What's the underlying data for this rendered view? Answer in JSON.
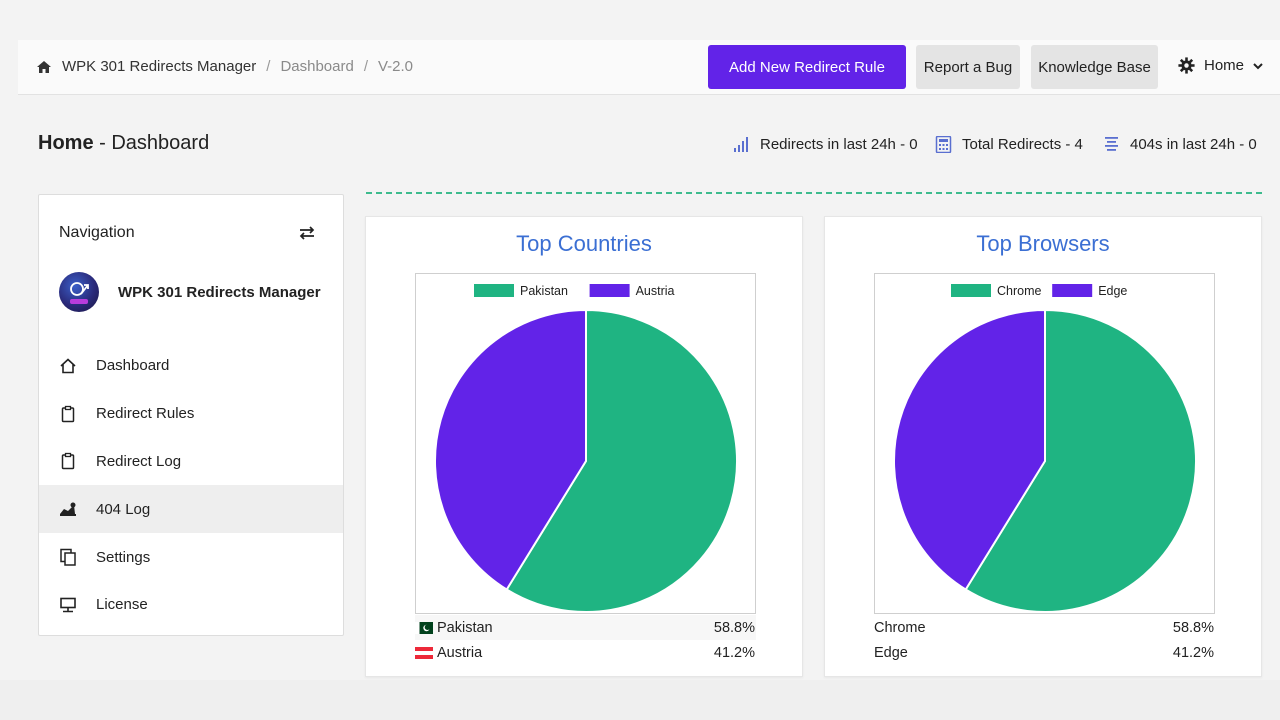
{
  "breadcrumb": {
    "app": "WPK 301 Redirects Manager",
    "page": "Dashboard",
    "version": "V-2.0"
  },
  "toolbar": {
    "add_rule_label": "Add New Redirect Rule",
    "report_bug_label": "Report a Bug",
    "knowledge_base_label": "Knowledge Base",
    "home_menu_label": "Home"
  },
  "page": {
    "title_bold": "Home",
    "title_rest": " - Dashboard"
  },
  "stats": {
    "redirects_24h": "Redirects in last 24h - 0",
    "total_redirects": "Total Redirects - 4",
    "errors_24h": "404s in last 24h - 0"
  },
  "sidebar": {
    "title": "Navigation",
    "brand": "WPK 301 Redirects Manager",
    "items": [
      {
        "label": "Dashboard",
        "icon": "home-icon"
      },
      {
        "label": "Redirect Rules",
        "icon": "clipboard-icon"
      },
      {
        "label": "Redirect Log",
        "icon": "clipboard-icon"
      },
      {
        "label": "404 Log",
        "icon": "error-log-icon"
      },
      {
        "label": "Settings",
        "icon": "copy-icon"
      },
      {
        "label": "License",
        "icon": "license-icon"
      }
    ]
  },
  "colors": {
    "accent": "#6223e8",
    "green": "#1fb482",
    "purple": "#6223e8",
    "title_blue": "#3b6fd3"
  },
  "chart_data": [
    {
      "type": "pie",
      "title": "Top Countries",
      "categories": [
        "Pakistan",
        "Austria"
      ],
      "values": [
        58.8,
        41.2
      ],
      "value_labels": [
        "58.8%",
        "41.2%"
      ],
      "colors": [
        "#1fb482",
        "#6223e8"
      ],
      "legend": "top"
    },
    {
      "type": "pie",
      "title": "Top Browsers",
      "categories": [
        "Chrome",
        "Edge"
      ],
      "values": [
        58.8,
        41.2
      ],
      "value_labels": [
        "58.8%",
        "41.2%"
      ],
      "colors": [
        "#1fb482",
        "#6223e8"
      ],
      "legend": "top"
    }
  ]
}
